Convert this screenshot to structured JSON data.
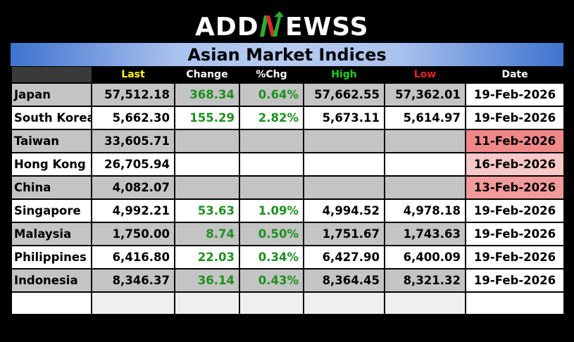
{
  "logo": {
    "text_before": "ADD",
    "text_after": "EWSS"
  },
  "title": "Asian Market Indices",
  "headers": {
    "name": "",
    "last": "Last",
    "change": "Change",
    "pct": "%Chg",
    "high": "High",
    "low": "Low",
    "date": "Date"
  },
  "header_colors": {
    "last": "#ffff00",
    "change": "#ffffff",
    "pct": "#ffffff",
    "high": "#22cc22",
    "low": "#ee2222",
    "date": "#ffffff"
  },
  "rows": [
    {
      "name": "Japan",
      "last": "57,512.18",
      "change": "368.34",
      "pct": "0.64%",
      "high": "57,662.55",
      "low": "57,362.01",
      "date": "19-Feb-2026"
    },
    {
      "name": "South Korea",
      "last": "5,662.30",
      "change": "155.29",
      "pct": "2.82%",
      "high": "5,673.11",
      "low": "5,614.97",
      "date": "19-Feb-2026"
    },
    {
      "name": "Taiwan",
      "last": "33,605.71",
      "change": "",
      "pct": "",
      "high": "",
      "low": "",
      "date": "11-Feb-2026"
    },
    {
      "name": "Hong Kong",
      "last": "26,705.94",
      "change": "",
      "pct": "",
      "high": "",
      "low": "",
      "date": "16-Feb-2026"
    },
    {
      "name": "China",
      "last": "4,082.07",
      "change": "",
      "pct": "",
      "high": "",
      "low": "",
      "date": "13-Feb-2026"
    },
    {
      "name": "Singapore",
      "last": "4,992.21",
      "change": "53.63",
      "pct": "1.09%",
      "high": "4,994.52",
      "low": "4,978.18",
      "date": "19-Feb-2026"
    },
    {
      "name": "Malaysia",
      "last": "1,750.00",
      "change": "8.74",
      "pct": "0.50%",
      "high": "1,751.67",
      "low": "1,743.63",
      "date": "19-Feb-2026"
    },
    {
      "name": "Philippines",
      "last": "6,416.80",
      "change": "22.03",
      "pct": "0.34%",
      "high": "6,427.90",
      "low": "6,400.09",
      "date": "19-Feb-2026"
    },
    {
      "name": "Indonesia",
      "last": "8,346.37",
      "change": "36.14",
      "pct": "0.43%",
      "high": "8,364.45",
      "low": "8,321.32",
      "date": "19-Feb-2026"
    }
  ],
  "colors": {
    "positive": "#1e8f1e",
    "stale_date_1": "#f08787",
    "stale_date_2": "#f7c8c8",
    "stale_date_3": "#f39b9b",
    "title_bar": "#3e73cf"
  }
}
